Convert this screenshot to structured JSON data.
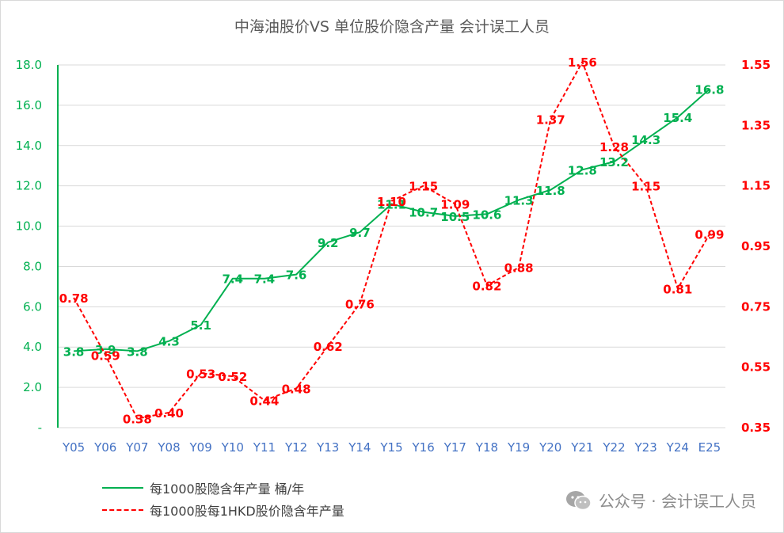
{
  "chart_data": {
    "type": "line",
    "title": "中海油股价VS 单位股价隐含产量 会计误工人员",
    "categories": [
      "Y05",
      "Y06",
      "Y07",
      "Y08",
      "Y09",
      "Y10",
      "Y11",
      "Y12",
      "Y13",
      "Y14",
      "Y15",
      "Y16",
      "Y17",
      "Y18",
      "Y19",
      "Y20",
      "Y21",
      "Y22",
      "Y23",
      "Y24",
      "E25"
    ],
    "left_axis": {
      "ylim": [
        0,
        18
      ],
      "ticks": [
        "-",
        "2.0",
        "4.0",
        "6.0",
        "8.0",
        "10.0",
        "12.0",
        "14.0",
        "16.0",
        "18.0"
      ],
      "color": "#00b050"
    },
    "right_axis": {
      "ylim": [
        0.35,
        1.55
      ],
      "ticks": [
        "0.35",
        "0.55",
        "0.75",
        "0.95",
        "1.15",
        "1.35",
        "1.55"
      ],
      "color": "#ff0000"
    },
    "grid": true,
    "legend_position": "bottom-left",
    "series": [
      {
        "name": "每1000股隐含年产量 桶/年",
        "axis": "left",
        "style": "solid",
        "color": "#00b050",
        "values": [
          3.8,
          3.9,
          3.8,
          4.3,
          5.1,
          7.4,
          7.4,
          7.6,
          9.2,
          9.7,
          11.1,
          10.7,
          10.5,
          10.6,
          11.3,
          11.8,
          12.8,
          13.2,
          14.3,
          15.4,
          16.8
        ],
        "labels": [
          "3.8",
          "3.9",
          "3.8",
          "4.3",
          "5.1",
          "7.4",
          "7.4",
          "7.6",
          "9.2",
          "9.7",
          "11.1",
          "10.7",
          "10.5",
          "10.6",
          "11.3",
          "11.8",
          "12.8",
          "13.2",
          "14.3",
          "15.4",
          "16.8"
        ]
      },
      {
        "name": "每1000股每1HKD股价隐含年产量",
        "axis": "right",
        "style": "dashed",
        "color": "#ff0000",
        "values": [
          0.78,
          0.59,
          0.38,
          0.4,
          0.53,
          0.52,
          0.44,
          0.48,
          0.62,
          0.76,
          1.1,
          1.15,
          1.09,
          0.82,
          0.88,
          1.37,
          1.56,
          1.28,
          1.15,
          0.81,
          0.99
        ],
        "labels": [
          "0.78",
          "0.59",
          "0.38",
          "0.40",
          "0.53",
          "0.52",
          "0.44",
          "0.48",
          "0.62",
          "0.76",
          "1.10",
          "1.15",
          "1.09",
          "0.82",
          "0.88",
          "1.37",
          "1.56",
          "1.28",
          "1.15",
          "0.81",
          "0.99"
        ]
      }
    ]
  },
  "legend": {
    "primary": "每1000股隐含年产量 桶/年",
    "secondary": "每1000股每1HKD股价隐含年产量"
  },
  "watermark": {
    "icon": "wechat-icon",
    "text": "公众号 · 会计误工人员"
  }
}
